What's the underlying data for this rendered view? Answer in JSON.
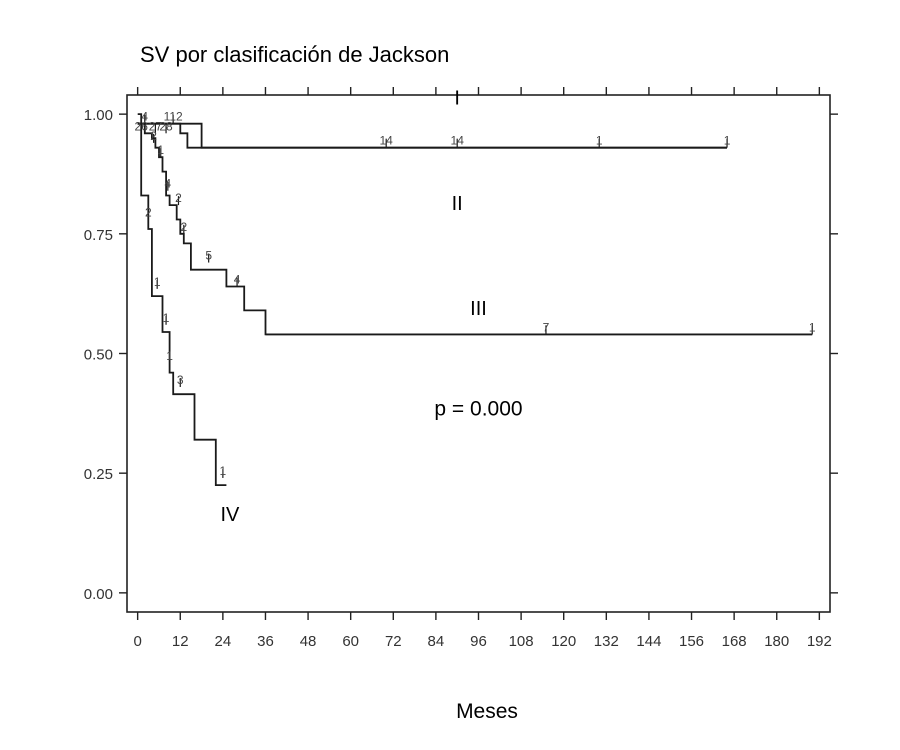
{
  "chart_data": {
    "type": "line",
    "title": "SV por clasificación de Jackson",
    "xlabel": "Meses",
    "ylabel": "",
    "xlim": [
      -3,
      195
    ],
    "ylim": [
      -0.04,
      1.04
    ],
    "x_ticks": [
      0,
      12,
      24,
      36,
      48,
      60,
      72,
      84,
      96,
      108,
      120,
      132,
      144,
      156,
      168,
      180,
      192
    ],
    "y_ticks": [
      0,
      0.25,
      0.5,
      0.75,
      1.0
    ],
    "y_tick_labels": [
      "0.00",
      "0.25",
      "0.50",
      "0.75",
      "1.00"
    ],
    "grid": false,
    "series": [
      {
        "name": "I",
        "label_pos": [
          90,
          1.02
        ],
        "x": [
          0,
          18,
          18,
          166
        ],
        "y": [
          0.98,
          0.98,
          0.93,
          0.93
        ],
        "censor_labels": [
          {
            "x": 2,
            "y": 0.98,
            "text": "4"
          },
          {
            "x": 10,
            "y": 0.98,
            "text": "112"
          },
          {
            "x": 70,
            "y": 0.93,
            "text": "14"
          },
          {
            "x": 90,
            "y": 0.93,
            "text": "14"
          },
          {
            "x": 130,
            "y": 0.93,
            "text": "1"
          },
          {
            "x": 166,
            "y": 0.93,
            "text": "1"
          }
        ]
      },
      {
        "name": "I",
        "label_pos": [
          90,
          1.02
        ],
        "x": [
          0,
          12,
          12,
          14,
          14,
          166
        ],
        "y": [
          0.98,
          0.98,
          0.96,
          0.96,
          0.93,
          0.93
        ],
        "censor_labels": []
      },
      {
        "name": "II",
        "label_pos": [
          90,
          0.8
        ],
        "x": [
          0,
          2,
          2,
          4,
          4,
          5,
          5,
          6,
          6,
          7,
          7,
          8,
          8,
          9,
          9,
          11,
          11,
          12,
          12,
          13,
          13,
          15,
          15,
          25,
          25,
          30,
          30,
          36,
          36,
          190
        ],
        "y": [
          0.98,
          0.98,
          0.96,
          0.96,
          0.95,
          0.95,
          0.93,
          0.93,
          0.91,
          0.91,
          0.88,
          0.88,
          0.83,
          0.83,
          0.81,
          0.81,
          0.78,
          0.78,
          0.75,
          0.75,
          0.73,
          0.73,
          0.675,
          0.675,
          0.64,
          0.64,
          0.59,
          0.59,
          0.54,
          0.54
        ],
        "censor_labels": [
          {
            "x": 1,
            "y": 0.96,
            "text": "26"
          },
          {
            "x": 5,
            "y": 0.96,
            "text": "27"
          },
          {
            "x": 8,
            "y": 0.96,
            "text": "28"
          },
          {
            "x": 4.5,
            "y": 0.94,
            "text": "2"
          },
          {
            "x": 6.5,
            "y": 0.91,
            "text": "1"
          },
          {
            "x": 8.5,
            "y": 0.84,
            "text": "4"
          },
          {
            "x": 11.5,
            "y": 0.81,
            "text": "2"
          },
          {
            "x": 13,
            "y": 0.75,
            "text": "2"
          },
          {
            "x": 20,
            "y": 0.69,
            "text": "5"
          },
          {
            "x": 28,
            "y": 0.64,
            "text": "4"
          }
        ]
      },
      {
        "name": "III",
        "label_pos": [
          96,
          0.58
        ],
        "x": [
          36,
          190
        ],
        "y": [
          0.54,
          0.54
        ],
        "censor_labels": [
          {
            "x": 115,
            "y": 0.54,
            "text": "7"
          },
          {
            "x": 190,
            "y": 0.54,
            "text": "1"
          }
        ]
      },
      {
        "name": "IV",
        "label_pos": [
          26,
          0.15
        ],
        "x": [
          0,
          1,
          1,
          3,
          3,
          4,
          4,
          7,
          7,
          9,
          9,
          10,
          10,
          16,
          16,
          22,
          22,
          25
        ],
        "y": [
          1.0,
          1.0,
          0.83,
          0.83,
          0.76,
          0.76,
          0.62,
          0.62,
          0.545,
          0.545,
          0.46,
          0.46,
          0.415,
          0.415,
          0.32,
          0.32,
          0.225,
          0.225
        ],
        "censor_labels": [
          {
            "x": 3,
            "y": 0.78,
            "text": "2"
          },
          {
            "x": 5.5,
            "y": 0.635,
            "text": "1"
          },
          {
            "x": 8,
            "y": 0.56,
            "text": "1"
          },
          {
            "x": 9,
            "y": 0.48,
            "text": "1"
          },
          {
            "x": 12,
            "y": 0.43,
            "text": "3"
          },
          {
            "x": 24,
            "y": 0.24,
            "text": "1"
          }
        ]
      }
    ],
    "annotations": [
      {
        "x": 96,
        "y": 0.37,
        "text": "p = 0.000"
      }
    ]
  }
}
